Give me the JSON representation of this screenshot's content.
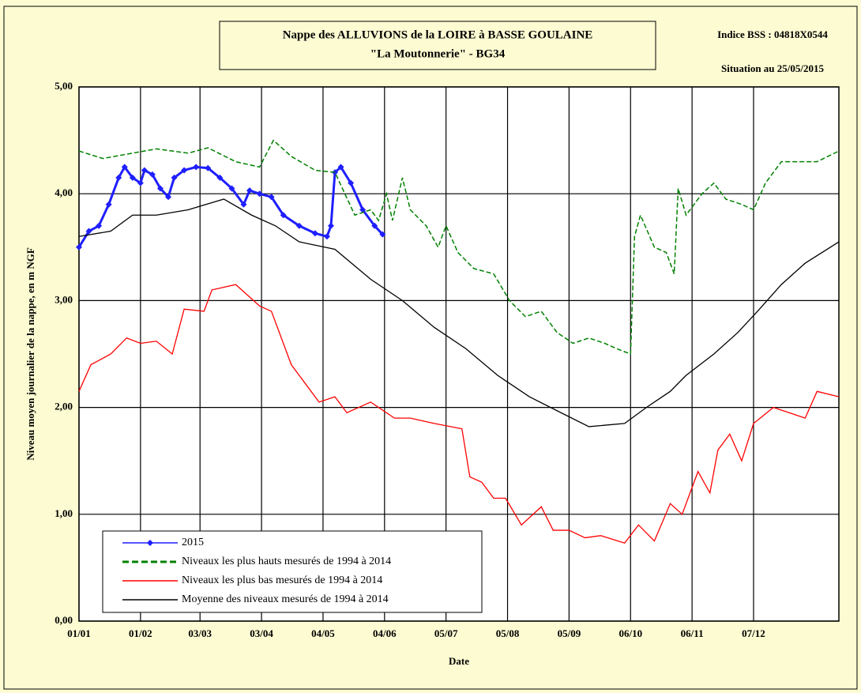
{
  "chart_data": {
    "type": "line",
    "title": [
      "Nappe des ALLUVIONS de la LOIRE à BASSE GOULAINE",
      "\"La Moutonnerie\" - BG34"
    ],
    "annotations": [
      "Indice BSS : 04818X0544",
      "Situation au 25/05/2015"
    ],
    "xlabel": "Date",
    "ylabel": "Niveau moyen journalier de la nappe, en m NGF",
    "xlim": [
      0,
      383
    ],
    "xticks": [
      {
        "value": 0,
        "label": "01/01"
      },
      {
        "value": 31,
        "label": "01/02"
      },
      {
        "value": 61,
        "label": "03/03"
      },
      {
        "value": 92,
        "label": "03/04"
      },
      {
        "value": 123,
        "label": "04/05"
      },
      {
        "value": 154,
        "label": "04/06"
      },
      {
        "value": 185,
        "label": "05/07"
      },
      {
        "value": 216,
        "label": "05/08"
      },
      {
        "value": 247,
        "label": "05/09"
      },
      {
        "value": 278,
        "label": "06/10"
      },
      {
        "value": 309,
        "label": "06/11"
      },
      {
        "value": 340,
        "label": "07/12"
      }
    ],
    "ylim": [
      0,
      5
    ],
    "yticks": [
      {
        "value": 0,
        "label": "0,00"
      },
      {
        "value": 1,
        "label": "1,00"
      },
      {
        "value": 2,
        "label": "2,00"
      },
      {
        "value": 3,
        "label": "3,00"
      },
      {
        "value": 4,
        "label": "4,00"
      },
      {
        "value": 5,
        "label": "5,00"
      }
    ],
    "grid": true,
    "legend": "lower-left",
    "series": [
      {
        "name": "2015",
        "color": "#1f1fff",
        "marker": "diamond",
        "dashed": false,
        "x": [
          0,
          5,
          10,
          15,
          20,
          23,
          27,
          31,
          33,
          37,
          41,
          45,
          48,
          53,
          59,
          65,
          71,
          77,
          83,
          86,
          91,
          97,
          103,
          111,
          119,
          125,
          127,
          129,
          132,
          137,
          143,
          149,
          153
        ],
        "values": [
          3.5,
          3.65,
          3.7,
          3.9,
          4.15,
          4.25,
          4.15,
          4.1,
          4.22,
          4.18,
          4.05,
          3.97,
          4.15,
          4.22,
          4.25,
          4.24,
          4.15,
          4.05,
          3.9,
          4.03,
          4.0,
          3.97,
          3.8,
          3.7,
          3.63,
          3.6,
          3.7,
          4.2,
          4.25,
          4.1,
          3.85,
          3.7,
          3.62
        ]
      },
      {
        "name": "Niveaux les plus hauts mesurés de 1994 à 2014",
        "color": "#008000",
        "dashed": true,
        "x": [
          0,
          12,
          24,
          39,
          55,
          65,
          79,
          91,
          98,
          107,
          119,
          129,
          139,
          147,
          151,
          155,
          158,
          163,
          167,
          175,
          181,
          185,
          191,
          199,
          209,
          217,
          225,
          233,
          241,
          249,
          257,
          265,
          271,
          278,
          280,
          283,
          290,
          296,
          300,
          302,
          306,
          314,
          320,
          326,
          334,
          340,
          346,
          354,
          362,
          372,
          383
        ],
        "values": [
          4.4,
          4.33,
          4.37,
          4.42,
          4.38,
          4.43,
          4.3,
          4.25,
          4.5,
          4.35,
          4.22,
          4.2,
          3.8,
          3.85,
          3.75,
          4.0,
          3.75,
          4.15,
          3.85,
          3.7,
          3.5,
          3.7,
          3.45,
          3.3,
          3.25,
          3.0,
          2.85,
          2.9,
          2.7,
          2.6,
          2.65,
          2.6,
          2.55,
          2.5,
          3.6,
          3.8,
          3.5,
          3.45,
          3.25,
          4.05,
          3.8,
          4.0,
          4.1,
          3.95,
          3.9,
          3.85,
          4.1,
          4.3,
          4.3,
          4.3,
          4.4
        ]
      },
      {
        "name": "Niveaux les plus bas mesurés de 1994 à 2014",
        "color": "#ff0000",
        "dashed": false,
        "x": [
          0,
          6,
          16,
          24,
          31,
          39,
          47,
          53,
          63,
          67,
          79,
          85,
          91,
          97,
          107,
          115,
          121,
          129,
          135,
          147,
          159,
          167,
          179,
          193,
          197,
          203,
          209,
          215,
          223,
          233,
          239,
          247,
          255,
          263,
          275,
          282,
          290,
          298,
          304,
          312,
          318,
          322,
          328,
          334,
          340,
          350,
          358,
          366,
          372,
          383
        ],
        "values": [
          2.15,
          2.4,
          2.5,
          2.65,
          2.6,
          2.62,
          2.5,
          2.92,
          2.9,
          3.1,
          3.15,
          3.05,
          2.95,
          2.9,
          2.4,
          2.2,
          2.05,
          2.1,
          1.95,
          2.05,
          1.9,
          1.9,
          1.85,
          1.8,
          1.35,
          1.3,
          1.15,
          1.15,
          0.9,
          1.07,
          0.85,
          0.85,
          0.78,
          0.8,
          0.73,
          0.9,
          0.75,
          1.1,
          1.0,
          1.4,
          1.2,
          1.6,
          1.75,
          1.5,
          1.85,
          2.0,
          1.95,
          1.9,
          2.15,
          2.1
        ]
      },
      {
        "name": "Moyenne des niveaux mesurés de 1994 à 2014",
        "color": "#000000",
        "dashed": false,
        "x": [
          0,
          16,
          27,
          39,
          55,
          73,
          87,
          99,
          111,
          129,
          147,
          163,
          179,
          195,
          211,
          227,
          243,
          257,
          275,
          286,
          298,
          306,
          320,
          332,
          342,
          354,
          366,
          383
        ],
        "values": [
          3.6,
          3.65,
          3.8,
          3.8,
          3.85,
          3.95,
          3.8,
          3.7,
          3.55,
          3.48,
          3.2,
          3.0,
          2.75,
          2.55,
          2.3,
          2.1,
          1.95,
          1.82,
          1.85,
          2.0,
          2.15,
          2.3,
          2.5,
          2.7,
          2.9,
          3.15,
          3.35,
          3.55
        ]
      }
    ]
  }
}
